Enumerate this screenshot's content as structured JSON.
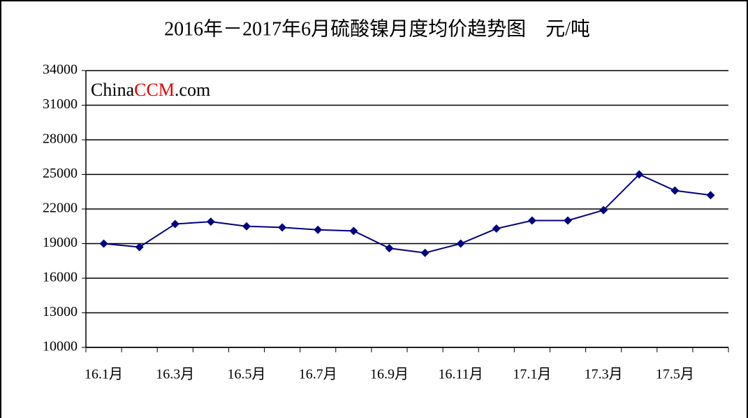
{
  "chart_data": {
    "type": "line",
    "title": "2016年－2017年6月硫酸镍月度均价趋势图　元/吨",
    "watermark": [
      "China",
      "CCM",
      ".com"
    ],
    "categories": [
      "16.1月",
      null,
      "16.3月",
      null,
      "16.5月",
      null,
      "16.7月",
      null,
      "16.9月",
      null,
      "16.11月",
      null,
      "17.1月",
      null,
      "17.3月",
      null,
      "17.5月",
      null
    ],
    "series": [
      {
        "color": "#000080",
        "values": [
          19000,
          18700,
          20700,
          20900,
          20500,
          20400,
          20200,
          20100,
          18600,
          18200,
          19000,
          20300,
          21000,
          21000,
          21900,
          25000,
          23600,
          23200
        ]
      }
    ],
    "ylim": [
      10000,
      34000
    ],
    "yticks": [
      10000,
      13000,
      16000,
      19000,
      22000,
      25000,
      28000,
      31000,
      34000
    ],
    "grid": true
  }
}
